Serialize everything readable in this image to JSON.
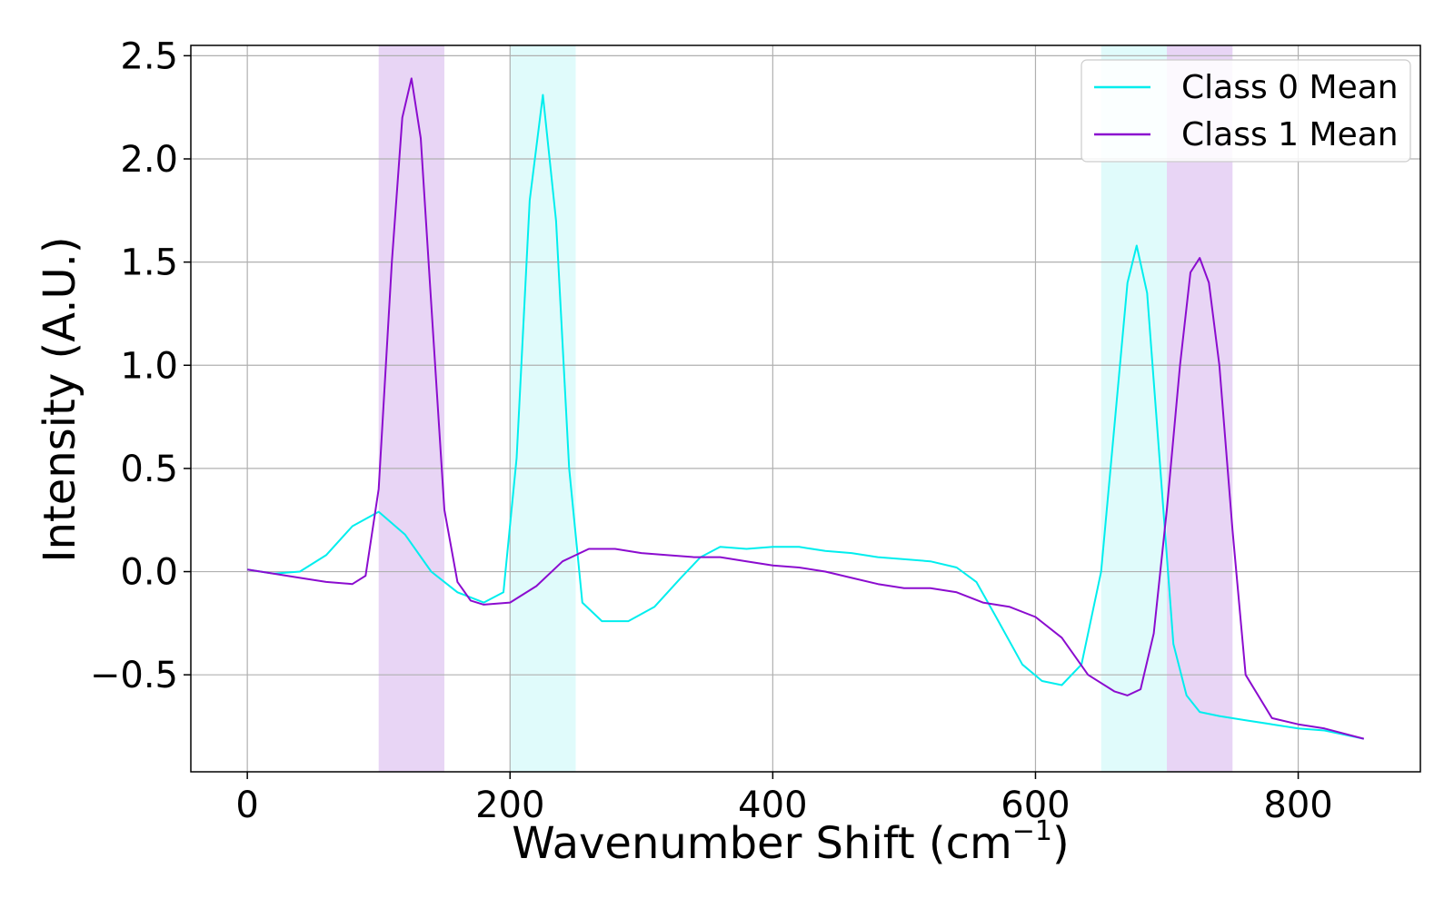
{
  "chart_data": {
    "type": "line",
    "xlabel": "Wavenumber Shift (cm",
    "xlabel_superscript": "−1",
    "xlabel_suffix": ")",
    "ylabel": "Intensity (A.U.)",
    "xlim": [
      -43,
      893
    ],
    "ylim": [
      -0.97,
      2.55
    ],
    "xticks": [
      0,
      200,
      400,
      600,
      800
    ],
    "xtick_labels": [
      "0",
      "200",
      "400",
      "600",
      "800"
    ],
    "yticks": [
      -0.5,
      0.0,
      0.5,
      1.0,
      1.5,
      2.0,
      2.5
    ],
    "ytick_labels": [
      "−0.5",
      "0.0",
      "0.5",
      "1.0",
      "1.5",
      "2.0",
      "2.5"
    ],
    "grid": true,
    "legend_position": "top-right",
    "shaded_regions": [
      {
        "x": [
          100,
          150
        ],
        "color": "#e8d5f5"
      },
      {
        "x": [
          200,
          250
        ],
        "color": "#e0fbfb"
      },
      {
        "x": [
          650,
          700
        ],
        "color": "#e0fbfb"
      },
      {
        "x": [
          700,
          750
        ],
        "color": "#e8d5f5"
      }
    ],
    "series": [
      {
        "name": "Class 0 Mean",
        "color": "#00eeee",
        "x": [
          0,
          20,
          40,
          60,
          80,
          100,
          120,
          140,
          160,
          180,
          195,
          205,
          215,
          225,
          235,
          245,
          255,
          270,
          290,
          310,
          330,
          345,
          360,
          380,
          400,
          420,
          440,
          460,
          480,
          500,
          520,
          540,
          555,
          570,
          590,
          605,
          620,
          635,
          650,
          660,
          670,
          677,
          685,
          695,
          705,
          715,
          725,
          740,
          760,
          780,
          800,
          820,
          850
        ],
        "y": [
          0.01,
          -0.01,
          0.0,
          0.08,
          0.22,
          0.29,
          0.18,
          0.0,
          -0.1,
          -0.15,
          -0.1,
          0.55,
          1.8,
          2.31,
          1.7,
          0.5,
          -0.15,
          -0.24,
          -0.24,
          -0.17,
          -0.03,
          0.07,
          0.12,
          0.11,
          0.12,
          0.12,
          0.1,
          0.09,
          0.07,
          0.06,
          0.05,
          0.02,
          -0.05,
          -0.22,
          -0.45,
          -0.53,
          -0.55,
          -0.45,
          0.0,
          0.7,
          1.4,
          1.58,
          1.35,
          0.5,
          -0.35,
          -0.6,
          -0.68,
          -0.7,
          -0.72,
          -0.74,
          -0.76,
          -0.77,
          -0.81
        ]
      },
      {
        "name": "Class 1 Mean",
        "color": "#8b0ccf",
        "x": [
          0,
          20,
          40,
          60,
          80,
          90,
          100,
          110,
          118,
          125,
          132,
          140,
          150,
          160,
          170,
          180,
          200,
          220,
          240,
          260,
          280,
          300,
          320,
          340,
          360,
          380,
          400,
          420,
          440,
          460,
          480,
          500,
          520,
          540,
          560,
          580,
          600,
          620,
          640,
          660,
          670,
          680,
          690,
          700,
          710,
          718,
          725,
          732,
          740,
          750,
          760,
          780,
          800,
          820,
          850
        ],
        "y": [
          0.01,
          -0.01,
          -0.03,
          -0.05,
          -0.06,
          -0.02,
          0.4,
          1.5,
          2.2,
          2.39,
          2.1,
          1.3,
          0.3,
          -0.05,
          -0.14,
          -0.16,
          -0.15,
          -0.07,
          0.05,
          0.11,
          0.11,
          0.09,
          0.08,
          0.07,
          0.07,
          0.05,
          0.03,
          0.02,
          0.0,
          -0.03,
          -0.06,
          -0.08,
          -0.08,
          -0.1,
          -0.15,
          -0.17,
          -0.22,
          -0.32,
          -0.5,
          -0.58,
          -0.6,
          -0.57,
          -0.3,
          0.3,
          1.0,
          1.45,
          1.52,
          1.4,
          1.0,
          0.2,
          -0.5,
          -0.71,
          -0.74,
          -0.76,
          -0.81
        ]
      }
    ]
  }
}
